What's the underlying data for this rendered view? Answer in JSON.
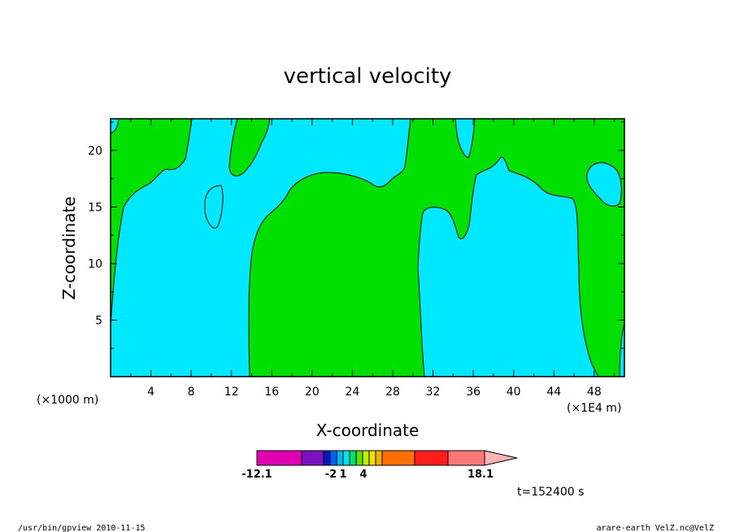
{
  "chart_data": {
    "type": "heatmap",
    "title": "vertical velocity",
    "xlabel": "X-coordinate",
    "ylabel": "Z-coordinate",
    "x_unit_left": "(×1000 m)",
    "x_unit_right": "(×1E4 m)",
    "x_ticks": [
      "4",
      "8",
      "12",
      "16",
      "20",
      "24",
      "28",
      "32",
      "36",
      "40",
      "44",
      "48"
    ],
    "y_ticks": [
      "5",
      "10",
      "15",
      "20"
    ],
    "xlim": [
      0,
      51
    ],
    "ylim": [
      0,
      22.8
    ],
    "colorbar": {
      "labels": [
        "-12.1",
        "-2",
        "1",
        "4",
        "18.1"
      ],
      "colors": [
        "#e000b0",
        "#7a10c0",
        "#0018c8",
        "#0064f0",
        "#00b4f0",
        "#00e4f0",
        "#00e070",
        "#60e000",
        "#c0f000",
        "#f0e000",
        "#f0b000",
        "#ff7000",
        "#ff1e1e",
        "#ff7878"
      ],
      "extend_color": "#ffb4b4",
      "negative_region_color": "#00e8ff",
      "positive_region_color": "#00e000"
    },
    "time_label": "t=152400 s"
  },
  "footer": {
    "left": "/usr/bin/gpview   2010-11-15",
    "right": "arare-earth_VelZ.nc@VelZ"
  }
}
